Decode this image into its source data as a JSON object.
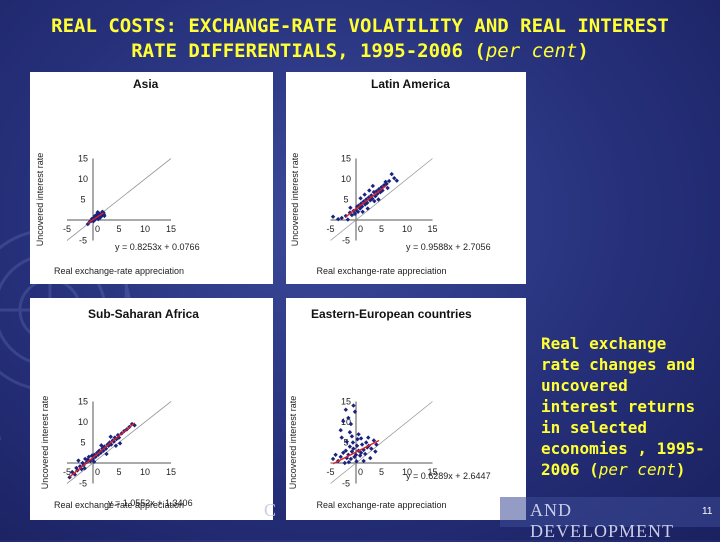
{
  "title": {
    "line1": "REAL COSTS: EXCHANGE-RATE VOLATILITY AND REAL INTEREST",
    "line2": "RATE DIFFERENTIALS, 1995-2006 (",
    "italic": "per cent",
    "close": ")"
  },
  "side_text": {
    "main": "Real exchange rate changes and uncovered interest returns in selected economies , 1995-2006 (",
    "italic": "per cent",
    "close": ")"
  },
  "footer": {
    "left": "C",
    "right": "AND DEVELOPMENT",
    "page": "11"
  },
  "colors": {
    "title": "#ffff33",
    "points": "#1a237e",
    "trend": "#e02020",
    "background": "#26307a"
  },
  "chart_data": [
    {
      "type": "scatter",
      "title": "Asia",
      "xlabel": "Real exchange-rate appreciation",
      "ylabel": "Uncovered interest rate",
      "xlim": [
        -5,
        15
      ],
      "ylim": [
        -5,
        15
      ],
      "xticks": [
        "-5",
        "0",
        "5",
        "10",
        "15"
      ],
      "yticks": [
        "-5",
        "0",
        "5",
        "10",
        "15"
      ],
      "equation": "y = 0.8253x + 0.0766",
      "trend": {
        "slope": 0.8253,
        "intercept": 0.0766,
        "x_range": [
          -1,
          2
        ]
      },
      "points": [
        [
          -1,
          -1
        ],
        [
          -0.6,
          -0.4
        ],
        [
          -0.3,
          -0.2
        ],
        [
          0,
          0
        ],
        [
          0.2,
          0.4
        ],
        [
          0.4,
          0.1
        ],
        [
          0.6,
          0.8
        ],
        [
          0.8,
          0.5
        ],
        [
          1,
          1
        ],
        [
          1.2,
          0.7
        ],
        [
          1.3,
          1.4
        ],
        [
          1.5,
          1.1
        ],
        [
          1.7,
          1.6
        ],
        [
          1.9,
          1.2
        ],
        [
          2,
          1.8
        ],
        [
          2.1,
          1.4
        ],
        [
          0.3,
          0.9
        ],
        [
          0.7,
          1.3
        ],
        [
          1.1,
          1.7
        ],
        [
          1.4,
          0.6
        ],
        [
          0.5,
          0.3
        ],
        [
          1.8,
          2.0
        ],
        [
          -0.2,
          0.3
        ],
        [
          0.9,
          1.9
        ],
        [
          1.6,
          0.9
        ],
        [
          0.1,
          -0.3
        ],
        [
          1.0,
          0.2
        ],
        [
          2.2,
          1.0
        ]
      ]
    },
    {
      "type": "scatter",
      "title": "Latin America",
      "xlabel": "Real exchange-rate appreciation",
      "ylabel": "Uncovered interest rate",
      "xlim": [
        -5,
        15
      ],
      "ylim": [
        -5,
        15
      ],
      "xticks": [
        "-5",
        "0",
        "5",
        "10",
        "15"
      ],
      "yticks": [
        "-5",
        "0",
        "5",
        "10",
        "15"
      ],
      "equation": "y = 0.9588x + 2.7056",
      "trend": {
        "slope": 0.9588,
        "intercept": 2.7056,
        "x_range": [
          -2,
          6
        ]
      },
      "points": [
        [
          -4.5,
          0.8
        ],
        [
          -3.5,
          0.2
        ],
        [
          -2.8,
          0.5
        ],
        [
          -2,
          1
        ],
        [
          -1.6,
          0.1
        ],
        [
          -1.2,
          1.8
        ],
        [
          -0.8,
          1.2
        ],
        [
          -0.5,
          2.2
        ],
        [
          -0.2,
          1.5
        ],
        [
          0,
          2.5
        ],
        [
          0.2,
          3.2
        ],
        [
          0.4,
          2.0
        ],
        [
          0.5,
          3.5
        ],
        [
          0.8,
          2.8
        ],
        [
          1,
          4
        ],
        [
          1.2,
          3.3
        ],
        [
          1.5,
          4.5
        ],
        [
          1.8,
          3.8
        ],
        [
          2,
          5
        ],
        [
          2.2,
          4.2
        ],
        [
          2.5,
          5.5
        ],
        [
          2.8,
          4.8
        ],
        [
          3,
          6
        ],
        [
          3.2,
          5.2
        ],
        [
          3.5,
          6.8
        ],
        [
          3.8,
          5.8
        ],
        [
          4,
          7
        ],
        [
          4.2,
          6.4
        ],
        [
          4.5,
          7.5
        ],
        [
          4.8,
          6.8
        ],
        [
          5,
          8
        ],
        [
          5.2,
          7.2
        ],
        [
          5.5,
          8.5
        ],
        [
          6,
          8.8
        ],
        [
          6.5,
          9.5
        ],
        [
          6.2,
          7.8
        ],
        [
          7,
          11.2
        ],
        [
          7.5,
          10.2
        ],
        [
          8,
          9.6
        ],
        [
          5.8,
          9.3
        ],
        [
          3.3,
          8.3
        ],
        [
          2.6,
          7.2
        ],
        [
          1.7,
          6.2
        ],
        [
          0.9,
          5.3
        ],
        [
          -1.1,
          3.0
        ],
        [
          1.3,
          2.0
        ],
        [
          3.6,
          4.6
        ],
        [
          4.4,
          5.0
        ],
        [
          2.3,
          2.8
        ]
      ]
    },
    {
      "type": "scatter",
      "title": "Sub-Saharan Africa",
      "xlabel": "Real exchange-rate appreciation",
      "ylabel": "Uncovered interest rate",
      "xlim": [
        -5,
        15
      ],
      "ylim": [
        -5,
        15
      ],
      "xticks": [
        "-5",
        "0",
        "5",
        "10",
        "15"
      ],
      "yticks": [
        "-5",
        "0",
        "5",
        "10",
        "15"
      ],
      "equation": "y = 1.0552x + 1.3406",
      "trend": {
        "slope": 1.0552,
        "intercept": 1.3406,
        "x_range": [
          -4.5,
          8
        ]
      },
      "points": [
        [
          -4.5,
          -3.5
        ],
        [
          -4,
          -2.2
        ],
        [
          -3.5,
          -2.8
        ],
        [
          -3.2,
          -1.2
        ],
        [
          -3,
          -1.8
        ],
        [
          -2.5,
          -0.8
        ],
        [
          -2.2,
          -1.5
        ],
        [
          -2,
          0
        ],
        [
          -1.8,
          -0.5
        ],
        [
          -1.5,
          1
        ],
        [
          -1.2,
          0.2
        ],
        [
          -1,
          0.8
        ],
        [
          -0.8,
          1.5
        ],
        [
          -0.5,
          0.5
        ],
        [
          -0.2,
          1.8
        ],
        [
          0,
          1
        ],
        [
          0.3,
          2
        ],
        [
          0.5,
          1.5
        ],
        [
          0.8,
          2.5
        ],
        [
          1,
          2
        ],
        [
          1.2,
          3
        ],
        [
          1.5,
          2.5
        ],
        [
          1.8,
          3.5
        ],
        [
          2,
          3
        ],
        [
          2.2,
          4
        ],
        [
          2.5,
          3.5
        ],
        [
          2.8,
          4.5
        ],
        [
          3,
          4.2
        ],
        [
          3.2,
          5
        ],
        [
          3.5,
          4.5
        ],
        [
          3.8,
          5.5
        ],
        [
          4,
          5.2
        ],
        [
          4.2,
          6.2
        ],
        [
          4.5,
          5.8
        ],
        [
          4.8,
          6.8
        ],
        [
          5,
          6.2
        ],
        [
          5.5,
          7.2
        ],
        [
          6,
          7.8
        ],
        [
          6.5,
          8.2
        ],
        [
          7,
          8.8
        ],
        [
          7.5,
          9.5
        ],
        [
          8,
          9.2
        ],
        [
          5.2,
          4.8
        ],
        [
          2.6,
          2.2
        ],
        [
          0.2,
          0.3
        ],
        [
          -2.8,
          0.6
        ],
        [
          1.6,
          4.3
        ],
        [
          3.4,
          6.4
        ],
        [
          -1.6,
          -1.3
        ],
        [
          4.4,
          4.2
        ]
      ]
    },
    {
      "type": "scatter",
      "title": "Eastern-European countries",
      "xlabel": "Real exchange-rate appreciation",
      "ylabel": "Uncovered interest rate",
      "xlim": [
        -5,
        15
      ],
      "ylim": [
        -5,
        15
      ],
      "xticks": [
        "-5",
        "0",
        "5",
        "10",
        "15"
      ],
      "yticks": [
        "-5",
        "0",
        "5",
        "10",
        "15"
      ],
      "equation": "y = 0.6289x + 2.6447",
      "trend": {
        "slope": 0.6289,
        "intercept": 2.6447,
        "x_range": [
          -4.5,
          4.5
        ]
      },
      "points": [
        [
          -4.5,
          1
        ],
        [
          -4,
          2
        ],
        [
          -3.5,
          0.5
        ],
        [
          -3,
          1.5
        ],
        [
          -2.5,
          2.5
        ],
        [
          -2.2,
          0
        ],
        [
          -2,
          3
        ],
        [
          -1.8,
          1.2
        ],
        [
          -1.5,
          2
        ],
        [
          -1.2,
          4
        ],
        [
          -1,
          1
        ],
        [
          -0.8,
          2.8
        ],
        [
          -0.5,
          3.5
        ],
        [
          -0.3,
          1.5
        ],
        [
          0,
          2
        ],
        [
          0.2,
          4.2
        ],
        [
          0.5,
          3
        ],
        [
          0.8,
          1.8
        ],
        [
          1,
          2.5
        ],
        [
          1.2,
          4.5
        ],
        [
          1.5,
          3.2
        ],
        [
          1.8,
          2.2
        ],
        [
          2,
          5
        ],
        [
          2.2,
          3.8
        ],
        [
          2.5,
          4.2
        ],
        [
          3,
          3.5
        ],
        [
          3.5,
          5.5
        ],
        [
          4,
          4.5
        ],
        [
          -2,
          13
        ],
        [
          -1.5,
          11
        ],
        [
          -1,
          9.5
        ],
        [
          -0.5,
          14
        ],
        [
          -1.2,
          7.5
        ],
        [
          -0.8,
          6.5
        ],
        [
          -2.5,
          10.2
        ],
        [
          0.5,
          7
        ],
        [
          1,
          6
        ],
        [
          -3,
          8
        ],
        [
          -1.8,
          5.2
        ],
        [
          -0.2,
          12.5
        ],
        [
          0.3,
          5.8
        ],
        [
          -2.8,
          6.2
        ],
        [
          1.5,
          0.5
        ],
        [
          2.8,
          1.2
        ],
        [
          0.1,
          0.4
        ],
        [
          -1.4,
          0.2
        ],
        [
          3.8,
          2.8
        ],
        [
          2.4,
          6.2
        ],
        [
          -0.6,
          5.0
        ]
      ]
    }
  ]
}
